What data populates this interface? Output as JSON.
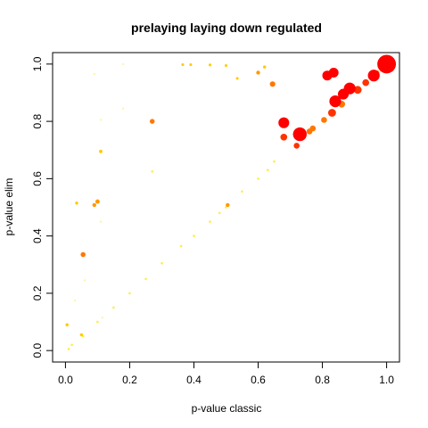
{
  "chart_data": {
    "type": "scatter",
    "title": "prelaying laying down regulated",
    "xlabel": "p-value classic",
    "ylabel": "p-value elim",
    "xlim": [
      -0.04,
      1.04
    ],
    "ylim": [
      -0.04,
      1.04
    ],
    "xticks": [
      0.0,
      0.2,
      0.4,
      0.6,
      0.8,
      1.0
    ],
    "yticks": [
      0.0,
      0.2,
      0.4,
      0.6,
      0.8,
      1.0
    ],
    "xtick_labels": [
      "0.0",
      "0.2",
      "0.4",
      "0.6",
      "0.8",
      "1.0"
    ],
    "ytick_labels": [
      "0.0",
      "0.2",
      "0.4",
      "0.6",
      "0.8",
      "1.0"
    ],
    "grid": false,
    "colors": {
      "red": "#ff0000",
      "red_orange": "#ff3300",
      "orange": "#ff7700",
      "amber": "#ff9900",
      "gold": "#ffcc00",
      "yellow": "#ffee44",
      "pale": "#fff3a0"
    },
    "points": [
      {
        "x": 1.0,
        "y": 1.0,
        "size": 9.5,
        "color": "red"
      },
      {
        "x": 0.96,
        "y": 0.96,
        "size": 6.0,
        "color": "red"
      },
      {
        "x": 0.73,
        "y": 0.755,
        "size": 7.0,
        "color": "red"
      },
      {
        "x": 0.885,
        "y": 0.915,
        "size": 6.0,
        "color": "red"
      },
      {
        "x": 0.865,
        "y": 0.895,
        "size": 5.5,
        "color": "red"
      },
      {
        "x": 0.84,
        "y": 0.87,
        "size": 6.0,
        "color": "red"
      },
      {
        "x": 0.835,
        "y": 0.97,
        "size": 5.0,
        "color": "red"
      },
      {
        "x": 0.815,
        "y": 0.96,
        "size": 5.0,
        "color": "red"
      },
      {
        "x": 0.68,
        "y": 0.795,
        "size": 5.5,
        "color": "red"
      },
      {
        "x": 0.83,
        "y": 0.83,
        "size": 4.0,
        "color": "red_orange"
      },
      {
        "x": 0.91,
        "y": 0.91,
        "size": 4.0,
        "color": "red_orange"
      },
      {
        "x": 0.935,
        "y": 0.935,
        "size": 3.5,
        "color": "red_orange"
      },
      {
        "x": 0.68,
        "y": 0.745,
        "size": 3.5,
        "color": "red_orange"
      },
      {
        "x": 0.72,
        "y": 0.715,
        "size": 3.0,
        "color": "red_orange"
      },
      {
        "x": 0.86,
        "y": 0.86,
        "size": 3.5,
        "color": "orange"
      },
      {
        "x": 0.805,
        "y": 0.805,
        "size": 3.0,
        "color": "orange"
      },
      {
        "x": 0.76,
        "y": 0.765,
        "size": 3.0,
        "color": "orange"
      },
      {
        "x": 0.77,
        "y": 0.775,
        "size": 3.0,
        "color": "orange"
      },
      {
        "x": 0.645,
        "y": 0.93,
        "size": 2.8,
        "color": "orange"
      },
      {
        "x": 0.27,
        "y": 0.8,
        "size": 2.5,
        "color": "orange"
      },
      {
        "x": 0.055,
        "y": 0.335,
        "size": 2.5,
        "color": "orange"
      },
      {
        "x": 0.1,
        "y": 0.52,
        "size": 2.2,
        "color": "amber"
      },
      {
        "x": 0.09,
        "y": 0.508,
        "size": 2.0,
        "color": "amber"
      },
      {
        "x": 0.505,
        "y": 0.508,
        "size": 2.0,
        "color": "amber"
      },
      {
        "x": 0.6,
        "y": 0.97,
        "size": 2.0,
        "color": "amber"
      },
      {
        "x": 0.97,
        "y": 0.97,
        "size": 2.5,
        "color": "amber"
      },
      {
        "x": 0.985,
        "y": 0.985,
        "size": 2.5,
        "color": "amber"
      },
      {
        "x": 0.11,
        "y": 0.695,
        "size": 1.8,
        "color": "gold"
      },
      {
        "x": 0.62,
        "y": 0.99,
        "size": 1.6,
        "color": "gold"
      },
      {
        "x": 0.535,
        "y": 0.95,
        "size": 1.4,
        "color": "gold"
      },
      {
        "x": 0.5,
        "y": 0.995,
        "size": 1.4,
        "color": "gold"
      },
      {
        "x": 0.45,
        "y": 0.997,
        "size": 1.4,
        "color": "gold"
      },
      {
        "x": 0.39,
        "y": 0.998,
        "size": 1.4,
        "color": "gold"
      },
      {
        "x": 0.365,
        "y": 0.998,
        "size": 1.4,
        "color": "gold"
      },
      {
        "x": 0.005,
        "y": 0.09,
        "size": 1.6,
        "color": "gold"
      },
      {
        "x": 0.05,
        "y": 0.055,
        "size": 1.6,
        "color": "gold"
      },
      {
        "x": 0.035,
        "y": 0.515,
        "size": 1.6,
        "color": "gold"
      },
      {
        "x": 0.5,
        "y": 0.5,
        "size": 1.2,
        "color": "yellow"
      },
      {
        "x": 0.45,
        "y": 0.45,
        "size": 1.2,
        "color": "yellow"
      },
      {
        "x": 0.48,
        "y": 0.48,
        "size": 1.2,
        "color": "yellow"
      },
      {
        "x": 0.55,
        "y": 0.555,
        "size": 1.2,
        "color": "yellow"
      },
      {
        "x": 0.6,
        "y": 0.6,
        "size": 1.2,
        "color": "yellow"
      },
      {
        "x": 0.63,
        "y": 0.63,
        "size": 1.2,
        "color": "yellow"
      },
      {
        "x": 0.65,
        "y": 0.66,
        "size": 1.2,
        "color": "yellow"
      },
      {
        "x": 0.4,
        "y": 0.4,
        "size": 1.2,
        "color": "yellow"
      },
      {
        "x": 0.36,
        "y": 0.365,
        "size": 1.2,
        "color": "yellow"
      },
      {
        "x": 0.3,
        "y": 0.305,
        "size": 1.2,
        "color": "yellow"
      },
      {
        "x": 0.25,
        "y": 0.25,
        "size": 1.2,
        "color": "yellow"
      },
      {
        "x": 0.2,
        "y": 0.2,
        "size": 1.2,
        "color": "yellow"
      },
      {
        "x": 0.15,
        "y": 0.15,
        "size": 1.2,
        "color": "yellow"
      },
      {
        "x": 0.1,
        "y": 0.1,
        "size": 1.2,
        "color": "yellow"
      },
      {
        "x": 0.055,
        "y": 0.05,
        "size": 1.2,
        "color": "yellow"
      },
      {
        "x": 0.02,
        "y": 0.02,
        "size": 1.2,
        "color": "yellow"
      },
      {
        "x": 0.01,
        "y": 0.005,
        "size": 1.2,
        "color": "yellow"
      },
      {
        "x": 0.27,
        "y": 0.625,
        "size": 1.2,
        "color": "yellow"
      },
      {
        "x": 0.11,
        "y": 0.45,
        "size": 1.0,
        "color": "pale"
      },
      {
        "x": 0.06,
        "y": 0.245,
        "size": 1.0,
        "color": "pale"
      },
      {
        "x": 0.03,
        "y": 0.175,
        "size": 1.0,
        "color": "pale"
      },
      {
        "x": 0.11,
        "y": 0.805,
        "size": 1.0,
        "color": "pale"
      },
      {
        "x": 0.18,
        "y": 0.845,
        "size": 1.0,
        "color": "pale"
      },
      {
        "x": 0.09,
        "y": 0.965,
        "size": 1.0,
        "color": "pale"
      },
      {
        "x": 0.18,
        "y": 1.0,
        "size": 1.0,
        "color": "pale"
      },
      {
        "x": 0.115,
        "y": 0.115,
        "size": 1.0,
        "color": "pale"
      }
    ]
  }
}
